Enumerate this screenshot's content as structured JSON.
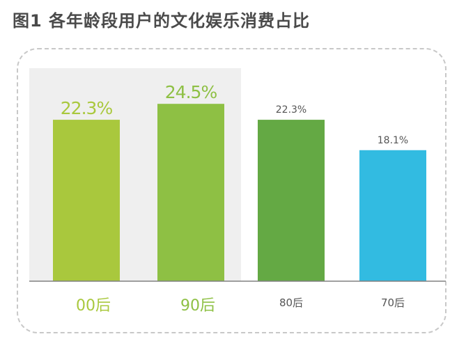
{
  "title": "图1  各年龄段用户的文化娱乐消费占比",
  "colors": {
    "highlight_bg": "#efefef",
    "baseline": "#808080",
    "title_text": "#4a4a4a",
    "small_label": "#555555"
  },
  "chart_data": {
    "type": "bar",
    "title": "图1  各年龄段用户的文化娱乐消费占比",
    "xlabel": "",
    "ylabel": "",
    "unit": "%",
    "categories": [
      "00后",
      "90后",
      "80后",
      "70后"
    ],
    "values": [
      22.3,
      24.5,
      22.3,
      18.1
    ],
    "value_labels": [
      "22.3%",
      "24.5%",
      "22.3%",
      "18.1%"
    ],
    "highlighted_categories": [
      "00后",
      "90后"
    ],
    "bar_colors": [
      "#a9c83d",
      "#8ec044",
      "#64a944",
      "#32bbe1"
    ],
    "ylim": [
      0,
      26
    ],
    "grid": false,
    "legend": "none"
  }
}
